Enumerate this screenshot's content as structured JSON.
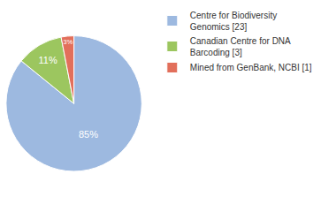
{
  "chart_data": {
    "type": "pie",
    "categories": [
      "Centre for Biodiversity Genomics [23]",
      "Canadian Centre for DNA Barcoding [3]",
      "Mined from GenBank, NCBI [1]"
    ],
    "values": [
      85,
      11,
      3
    ],
    "value_labels": [
      "85%",
      "11%",
      "3%"
    ],
    "colors": [
      "#9db9e0",
      "#9cc65f",
      "#e26f5b"
    ],
    "data_labels": true,
    "legend": "top right"
  }
}
